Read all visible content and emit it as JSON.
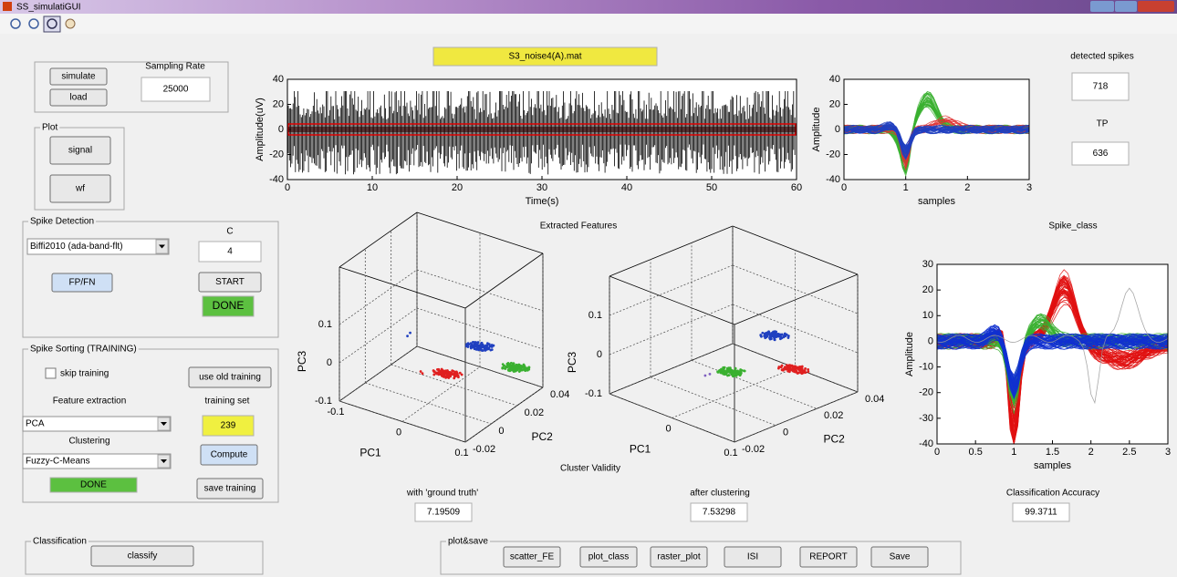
{
  "window": {
    "title": "SS_simulatiGUI"
  },
  "file_label": "S3_noise4(A).mat",
  "controls": {
    "simulate": "simulate",
    "load": "load",
    "sampling_rate_label": "Sampling Rate",
    "sampling_rate": 25000,
    "plot_panel": "Plot",
    "signal": "signal",
    "wf": "wf",
    "spike_detection_panel": "Spike Detection",
    "detection_method": "Biffi2010 (ada-band-flt)",
    "c_label": "C",
    "c_value": 4,
    "fpfn": "FP/FN",
    "start": "START",
    "detection_status": "DONE",
    "sorting_panel": "Spike Sorting (TRAINING)",
    "skip_training": "skip training",
    "use_old_training": "use old training",
    "feature_extraction_label": "Feature extraction",
    "training_set_label": "training set",
    "training_set": 239,
    "feature_method": "PCA",
    "clustering_label": "Clustering",
    "clustering_method": "Fuzzy-C-Means",
    "compute": "Compute",
    "sorting_status": "DONE",
    "save_training": "save training",
    "classification_panel": "Classification",
    "classify": "classify",
    "plot_save_panel": "plot&save",
    "buttons": [
      "scatter_FE",
      "plot_class",
      "raster_plot",
      "ISI",
      "REPORT",
      "Save"
    ]
  },
  "stats": {
    "detected_spikes_label": "detected spikes",
    "detected_spikes": 718,
    "tp_label": "TP",
    "tp": 636,
    "extracted_features": "Extracted Features",
    "spike_class": "Spike_class",
    "cluster_validity": "Cluster Validity",
    "ground_truth_label": "with 'ground truth'",
    "ground_truth": 7.19509,
    "after_clustering_label": "after clustering",
    "after_clustering": 7.53298,
    "accuracy_label": "Classification Accuracy",
    "accuracy": 99.3711
  },
  "plots": {
    "signal": {
      "xlabel": "Time(s)",
      "ylabel": "Amplitude(uV)",
      "xlim": [
        0,
        60
      ],
      "ylim": [
        -40,
        40
      ],
      "xticks": [
        0,
        10,
        20,
        30,
        40,
        50,
        60
      ],
      "yticks": [
        -40,
        -20,
        0,
        20,
        40
      ]
    },
    "waveforms": {
      "xlabel": "samples",
      "ylabel": "Amplitude",
      "xlim": [
        0,
        3
      ],
      "ylim": [
        -40,
        40
      ],
      "xticks": [
        0,
        1,
        2,
        3
      ],
      "yticks": [
        -40,
        -20,
        0,
        20,
        40
      ]
    },
    "features_truth": {
      "xlabel": "PC1",
      "ylabel": "PC2",
      "zlabel": "PC3",
      "xlim": [
        -0.1,
        0.1
      ],
      "ylim": [
        -0.02,
        0.04
      ],
      "zlim": [
        -0.1,
        0.25
      ],
      "xticks": [
        -0.1,
        0,
        0.1
      ],
      "yticks": [
        -0.02,
        0,
        0.02,
        0.04
      ],
      "zticks": [
        -0.1,
        0,
        0.1
      ]
    },
    "features_clustered": {
      "xlabel": "PC1",
      "ylabel": "PC2",
      "zlabel": "PC3",
      "xlim": [
        -0.1,
        0.1
      ],
      "ylim": [
        -0.02,
        0.04
      ],
      "zlim": [
        -0.1,
        0.2
      ],
      "xticks": [
        0,
        0.1
      ],
      "yticks": [
        -0.02,
        0,
        0.02,
        0.04
      ],
      "zticks": [
        -0.1,
        0,
        0.1
      ]
    },
    "class_waveforms": {
      "xlabel": "samples",
      "ylabel": "Amplitude",
      "xlim": [
        0,
        3
      ],
      "ylim": [
        -40,
        30
      ],
      "xticks": [
        0,
        0.5,
        1,
        1.5,
        2,
        2.5,
        3
      ],
      "yticks": [
        -40,
        -30,
        -20,
        -10,
        0,
        10,
        20,
        30
      ]
    }
  }
}
